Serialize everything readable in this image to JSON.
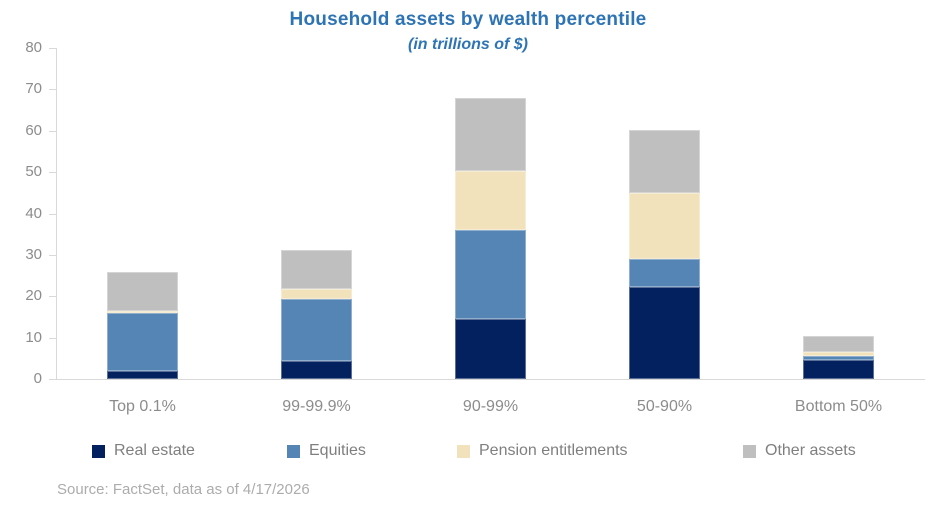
{
  "source_note": "Source: FactSet, data as of 4/17/2026",
  "colors": {
    "title_blue": "#2E74B5",
    "axis_line": "#D9D9D9",
    "tick_label_gray": "#8C8C8C",
    "legend_text_gray": "#7F7F7F",
    "source_text_gray": "#ACACAC",
    "background": "#FFFFFF"
  },
  "chart_data": {
    "type": "bar",
    "stacked": true,
    "title": "Household assets by wealth percentile",
    "subtitle": "(in trillions of $)",
    "units": "trillions of $",
    "categories": [
      "Top 0.1%",
      "99-99.9%",
      "90-99%",
      "50-90%",
      "Bottom 50%"
    ],
    "series": [
      {
        "name": "Real estate",
        "color": "#02215E",
        "values": [
          2.0,
          4.4,
          14.5,
          22.3,
          4.5
        ]
      },
      {
        "name": "Equities",
        "color": "#5585B5",
        "values": [
          14.0,
          14.9,
          21.5,
          6.7,
          1.0
        ]
      },
      {
        "name": "Pension entitlements",
        "color": "#F2E2BC",
        "values": [
          0.5,
          2.5,
          14.3,
          16.0,
          1.1
        ]
      },
      {
        "name": "Other assets",
        "color": "#BFBFBF",
        "values": [
          9.3,
          9.3,
          17.7,
          15.2,
          3.8
        ]
      }
    ],
    "totals": [
      25.8,
      31.1,
      68.0,
      60.2,
      10.4
    ],
    "ylim": [
      0,
      80
    ],
    "yticks": [
      0,
      10,
      20,
      30,
      40,
      50,
      60,
      70,
      80
    ],
    "grid": false,
    "legend_position": "bottom"
  }
}
